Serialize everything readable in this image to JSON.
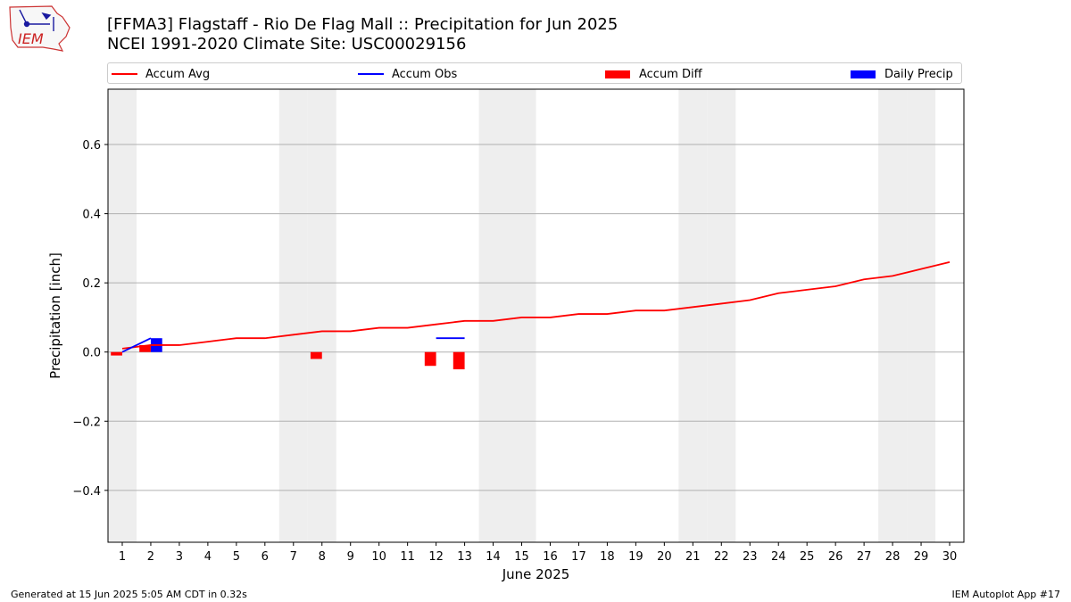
{
  "header": {
    "title": "[FFMA3] Flagstaff - Rio De Flag Mall :: Precipitation for Jun 2025",
    "subtitle": "NCEI 1991-2020 Climate Site: USC00029156",
    "logo_text": "IEM"
  },
  "footer": {
    "generated": "Generated at 15 Jun 2025 5:05 AM CDT in 0.32s",
    "app": "IEM Autoplot App #17"
  },
  "colors": {
    "accum_avg": "#ff0000",
    "accum_obs": "#0000ff",
    "accum_diff": "#ff0000",
    "daily_precip": "#0000ff",
    "weekend_band": "#eeeeee",
    "grid": "#b0b0b0"
  },
  "chart_data": {
    "type": "line",
    "xlabel": "June 2025",
    "ylabel": "Precipitation [inch]",
    "xlim": [
      0.5,
      30.5
    ],
    "ylim": [
      -0.55,
      0.76
    ],
    "grid": true,
    "legend_placement": "top",
    "x": [
      1,
      2,
      3,
      4,
      5,
      6,
      7,
      8,
      9,
      10,
      11,
      12,
      13,
      14,
      15,
      16,
      17,
      18,
      19,
      20,
      21,
      22,
      23,
      24,
      25,
      26,
      27,
      28,
      29,
      30
    ],
    "x_tick_labels": [
      "1",
      "2",
      "3",
      "4",
      "5",
      "6",
      "7",
      "8",
      "9",
      "10",
      "11",
      "12",
      "13",
      "14",
      "15",
      "16",
      "17",
      "18",
      "19",
      "20",
      "21",
      "22",
      "23",
      "24",
      "25",
      "26",
      "27",
      "28",
      "29",
      "30"
    ],
    "y_ticks": [
      -0.4,
      -0.2,
      0.0,
      0.2,
      0.4,
      0.6
    ],
    "y_tick_labels": [
      "−0.4",
      "−0.2",
      "0.0",
      "0.2",
      "0.4",
      "0.6"
    ],
    "weekend_days": [
      1,
      7,
      8,
      14,
      15,
      21,
      22,
      28,
      29
    ],
    "legend": [
      "Accum Avg",
      "Accum Obs",
      "Accum Diff",
      "Daily Precip"
    ],
    "series": [
      {
        "name": "Accum Avg",
        "kind": "line",
        "color": "#ff0000",
        "x": [
          1,
          2,
          3,
          4,
          5,
          6,
          7,
          8,
          9,
          10,
          11,
          12,
          13,
          14,
          15,
          16,
          17,
          18,
          19,
          20,
          21,
          22,
          23,
          24,
          25,
          26,
          27,
          28,
          29,
          30
        ],
        "values": [
          0.01,
          0.02,
          0.02,
          0.03,
          0.04,
          0.04,
          0.05,
          0.06,
          0.06,
          0.07,
          0.07,
          0.08,
          0.09,
          0.09,
          0.1,
          0.1,
          0.11,
          0.11,
          0.12,
          0.12,
          0.13,
          0.14,
          0.15,
          0.17,
          0.18,
          0.19,
          0.21,
          0.22,
          0.24,
          0.26
        ]
      },
      {
        "name": "Accum Obs",
        "kind": "line",
        "color": "#0000ff",
        "x": [
          1,
          2,
          3,
          4,
          5,
          6,
          7,
          8,
          9,
          10,
          11,
          12,
          13
        ],
        "values": [
          0.0,
          0.04,
          null,
          null,
          null,
          null,
          null,
          null,
          null,
          null,
          null,
          0.04,
          0.04
        ]
      },
      {
        "name": "Accum Diff",
        "kind": "bar",
        "color": "#ff0000",
        "x": [
          1,
          2,
          8,
          12,
          13
        ],
        "values": [
          -0.01,
          0.02,
          -0.02,
          -0.04,
          -0.05
        ]
      },
      {
        "name": "Daily Precip",
        "kind": "bar",
        "color": "#0000ff",
        "x": [
          2
        ],
        "values": [
          0.04
        ]
      }
    ]
  }
}
